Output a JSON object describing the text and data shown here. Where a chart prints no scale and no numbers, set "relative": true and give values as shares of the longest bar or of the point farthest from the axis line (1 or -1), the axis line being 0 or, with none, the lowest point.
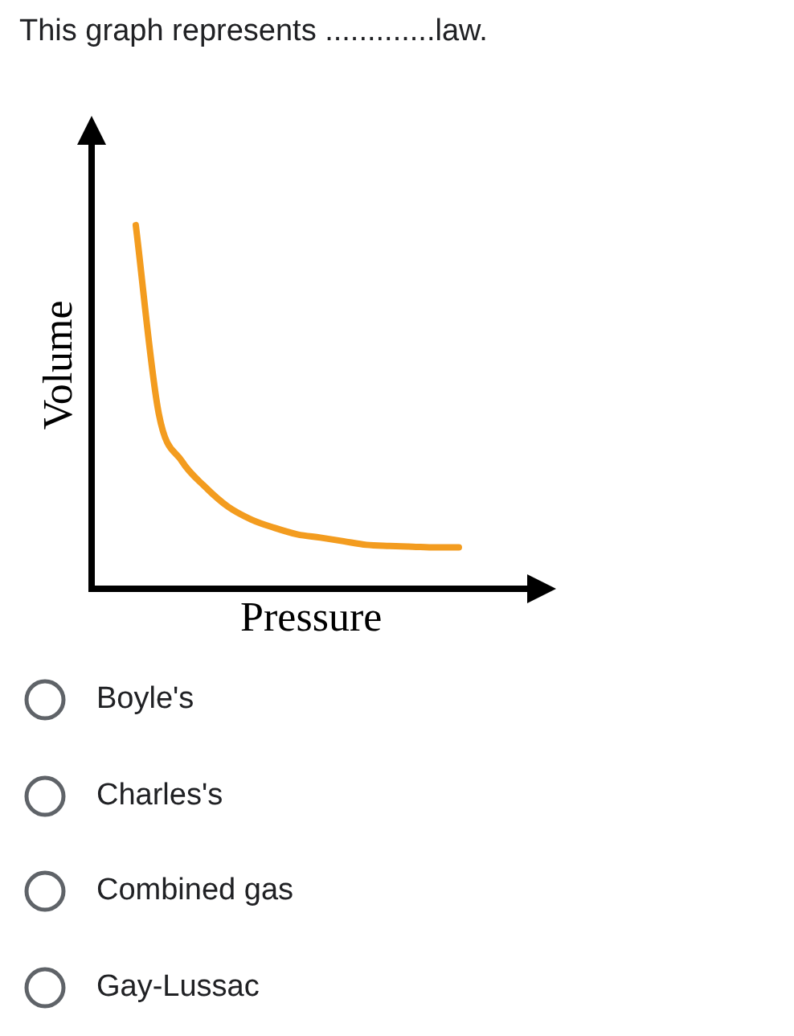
{
  "chart_data": {
    "type": "line",
    "title": "This graph represents .............law.",
    "xlabel": "Pressure",
    "ylabel": "Volume",
    "relative": true,
    "color": "#f39c1f",
    "marker": "none",
    "grid": false,
    "legend": false,
    "categories": [
      null,
      null,
      null,
      null,
      null,
      null,
      null,
      null,
      null,
      null,
      null,
      null,
      null,
      null,
      null
    ],
    "values": [
      1.0,
      0.48,
      0.35,
      0.28,
      0.225,
      0.19,
      0.167,
      0.149,
      0.14,
      0.13,
      0.12,
      0.117,
      0.115,
      0.113,
      0.113
    ],
    "annotations": [
      "Boyle's",
      "Charles's",
      "Combined gas",
      "Gay-Lussac"
    ]
  }
}
